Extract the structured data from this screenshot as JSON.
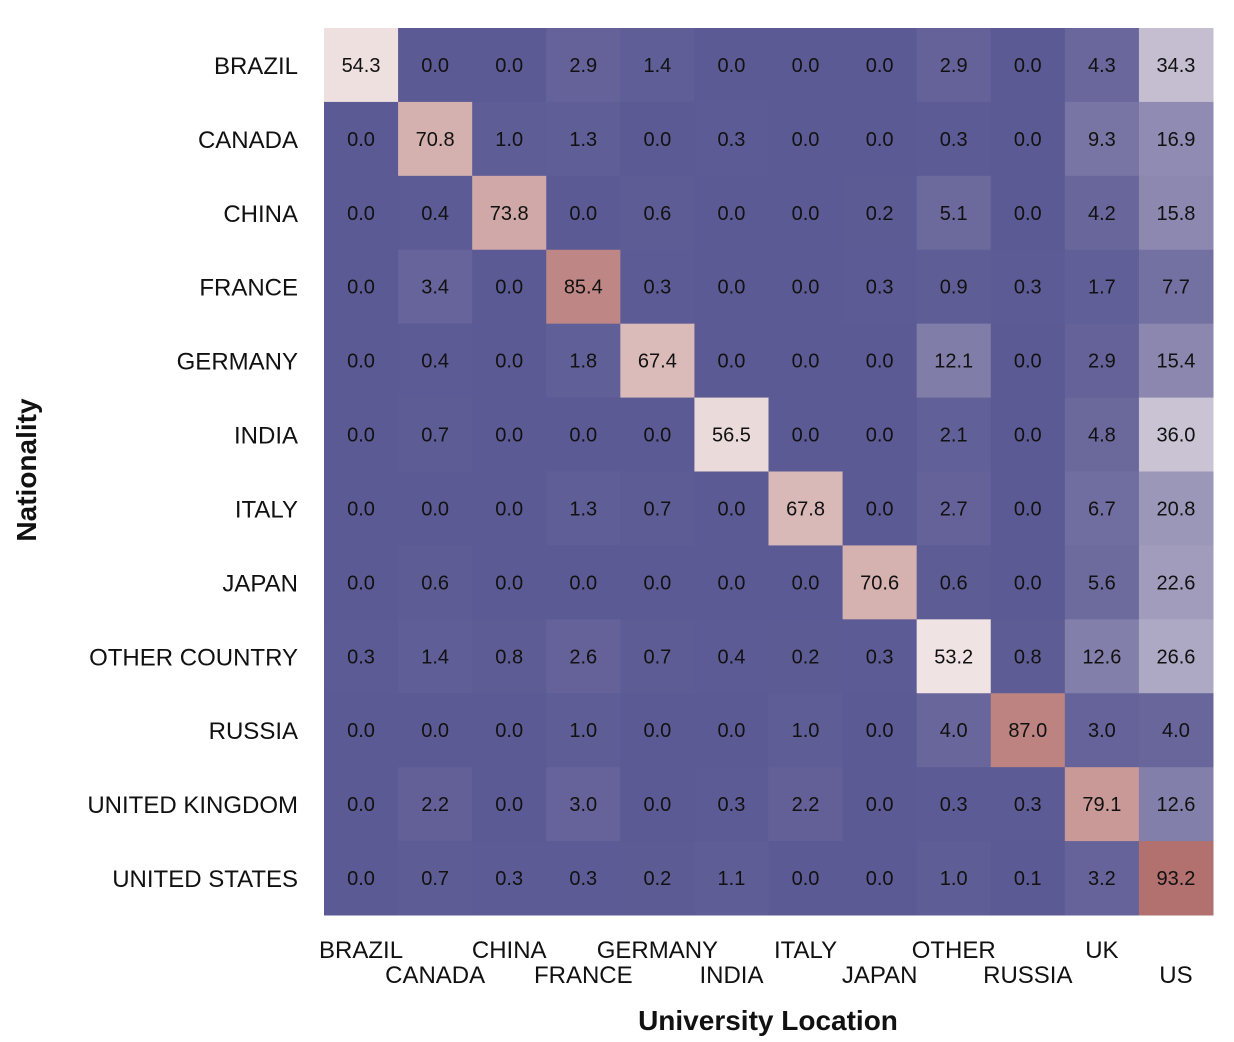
{
  "chart_data": {
    "type": "heatmap",
    "xlabel": "University Location",
    "ylabel": "Nationality",
    "x_categories": [
      "BRAZIL",
      "CANADA",
      "CHINA",
      "FRANCE",
      "GERMANY",
      "INDIA",
      "ITALY",
      "JAPAN",
      "OTHER",
      "RUSSIA",
      "UK",
      "US"
    ],
    "y_categories": [
      "BRAZIL",
      "CANADA",
      "CHINA",
      "FRANCE",
      "GERMANY",
      "INDIA",
      "ITALY",
      "JAPAN",
      "OTHER COUNTRY",
      "RUSSIA",
      "UNITED KINGDOM",
      "UNITED STATES"
    ],
    "values": [
      [
        "54.3",
        "0.0",
        "0.0",
        "2.9",
        "1.4",
        "0.0",
        "0.0",
        "0.0",
        "2.9",
        "0.0",
        "4.3",
        "34.3"
      ],
      [
        "0.0",
        "70.8",
        "1.0",
        "1.3",
        "0.0",
        "0.3",
        "0.0",
        "0.0",
        "0.3",
        "0.0",
        "9.3",
        "16.9"
      ],
      [
        "0.0",
        "0.4",
        "73.8",
        "0.0",
        "0.6",
        "0.0",
        "0.0",
        "0.2",
        "5.1",
        "0.0",
        "4.2",
        "15.8"
      ],
      [
        "0.0",
        "3.4",
        "0.0",
        "85.4",
        "0.3",
        "0.0",
        "0.0",
        "0.3",
        "0.9",
        "0.3",
        "1.7",
        "7.7"
      ],
      [
        "0.0",
        "0.4",
        "0.0",
        "1.8",
        "67.4",
        "0.0",
        "0.0",
        "0.0",
        "12.1",
        "0.0",
        "2.9",
        "15.4"
      ],
      [
        "0.0",
        "0.7",
        "0.0",
        "0.0",
        "0.0",
        "56.5",
        "0.0",
        "0.0",
        "2.1",
        "0.0",
        "4.8",
        "36.0"
      ],
      [
        "0.0",
        "0.0",
        "0.0",
        "1.3",
        "0.7",
        "0.0",
        "67.8",
        "0.0",
        "2.7",
        "0.0",
        "6.7",
        "20.8"
      ],
      [
        "0.0",
        "0.6",
        "0.0",
        "0.0",
        "0.0",
        "0.0",
        "0.0",
        "70.6",
        "0.6",
        "0.0",
        "5.6",
        "22.6"
      ],
      [
        "0.3",
        "1.4",
        "0.8",
        "2.6",
        "0.7",
        "0.4",
        "0.2",
        "0.3",
        "53.2",
        "0.8",
        "12.6",
        "26.6"
      ],
      [
        "0.0",
        "0.0",
        "0.0",
        "1.0",
        "0.0",
        "0.0",
        "1.0",
        "0.0",
        "4.0",
        "87.0",
        "3.0",
        "4.0"
      ],
      [
        "0.0",
        "2.2",
        "0.0",
        "3.0",
        "0.0",
        "0.3",
        "2.2",
        "0.0",
        "0.3",
        "0.3",
        "79.1",
        "12.6"
      ],
      [
        "0.0",
        "0.7",
        "0.3",
        "0.3",
        "0.2",
        "1.1",
        "0.0",
        "0.0",
        "1.0",
        "0.1",
        "3.2",
        "93.2"
      ]
    ],
    "color_scale": {
      "low": "#5c5a94",
      "mid": "#f4ecec",
      "high": "#a85e5a",
      "midpoint_value": 50,
      "max_value": 100
    },
    "grid": false,
    "legend": "none"
  }
}
